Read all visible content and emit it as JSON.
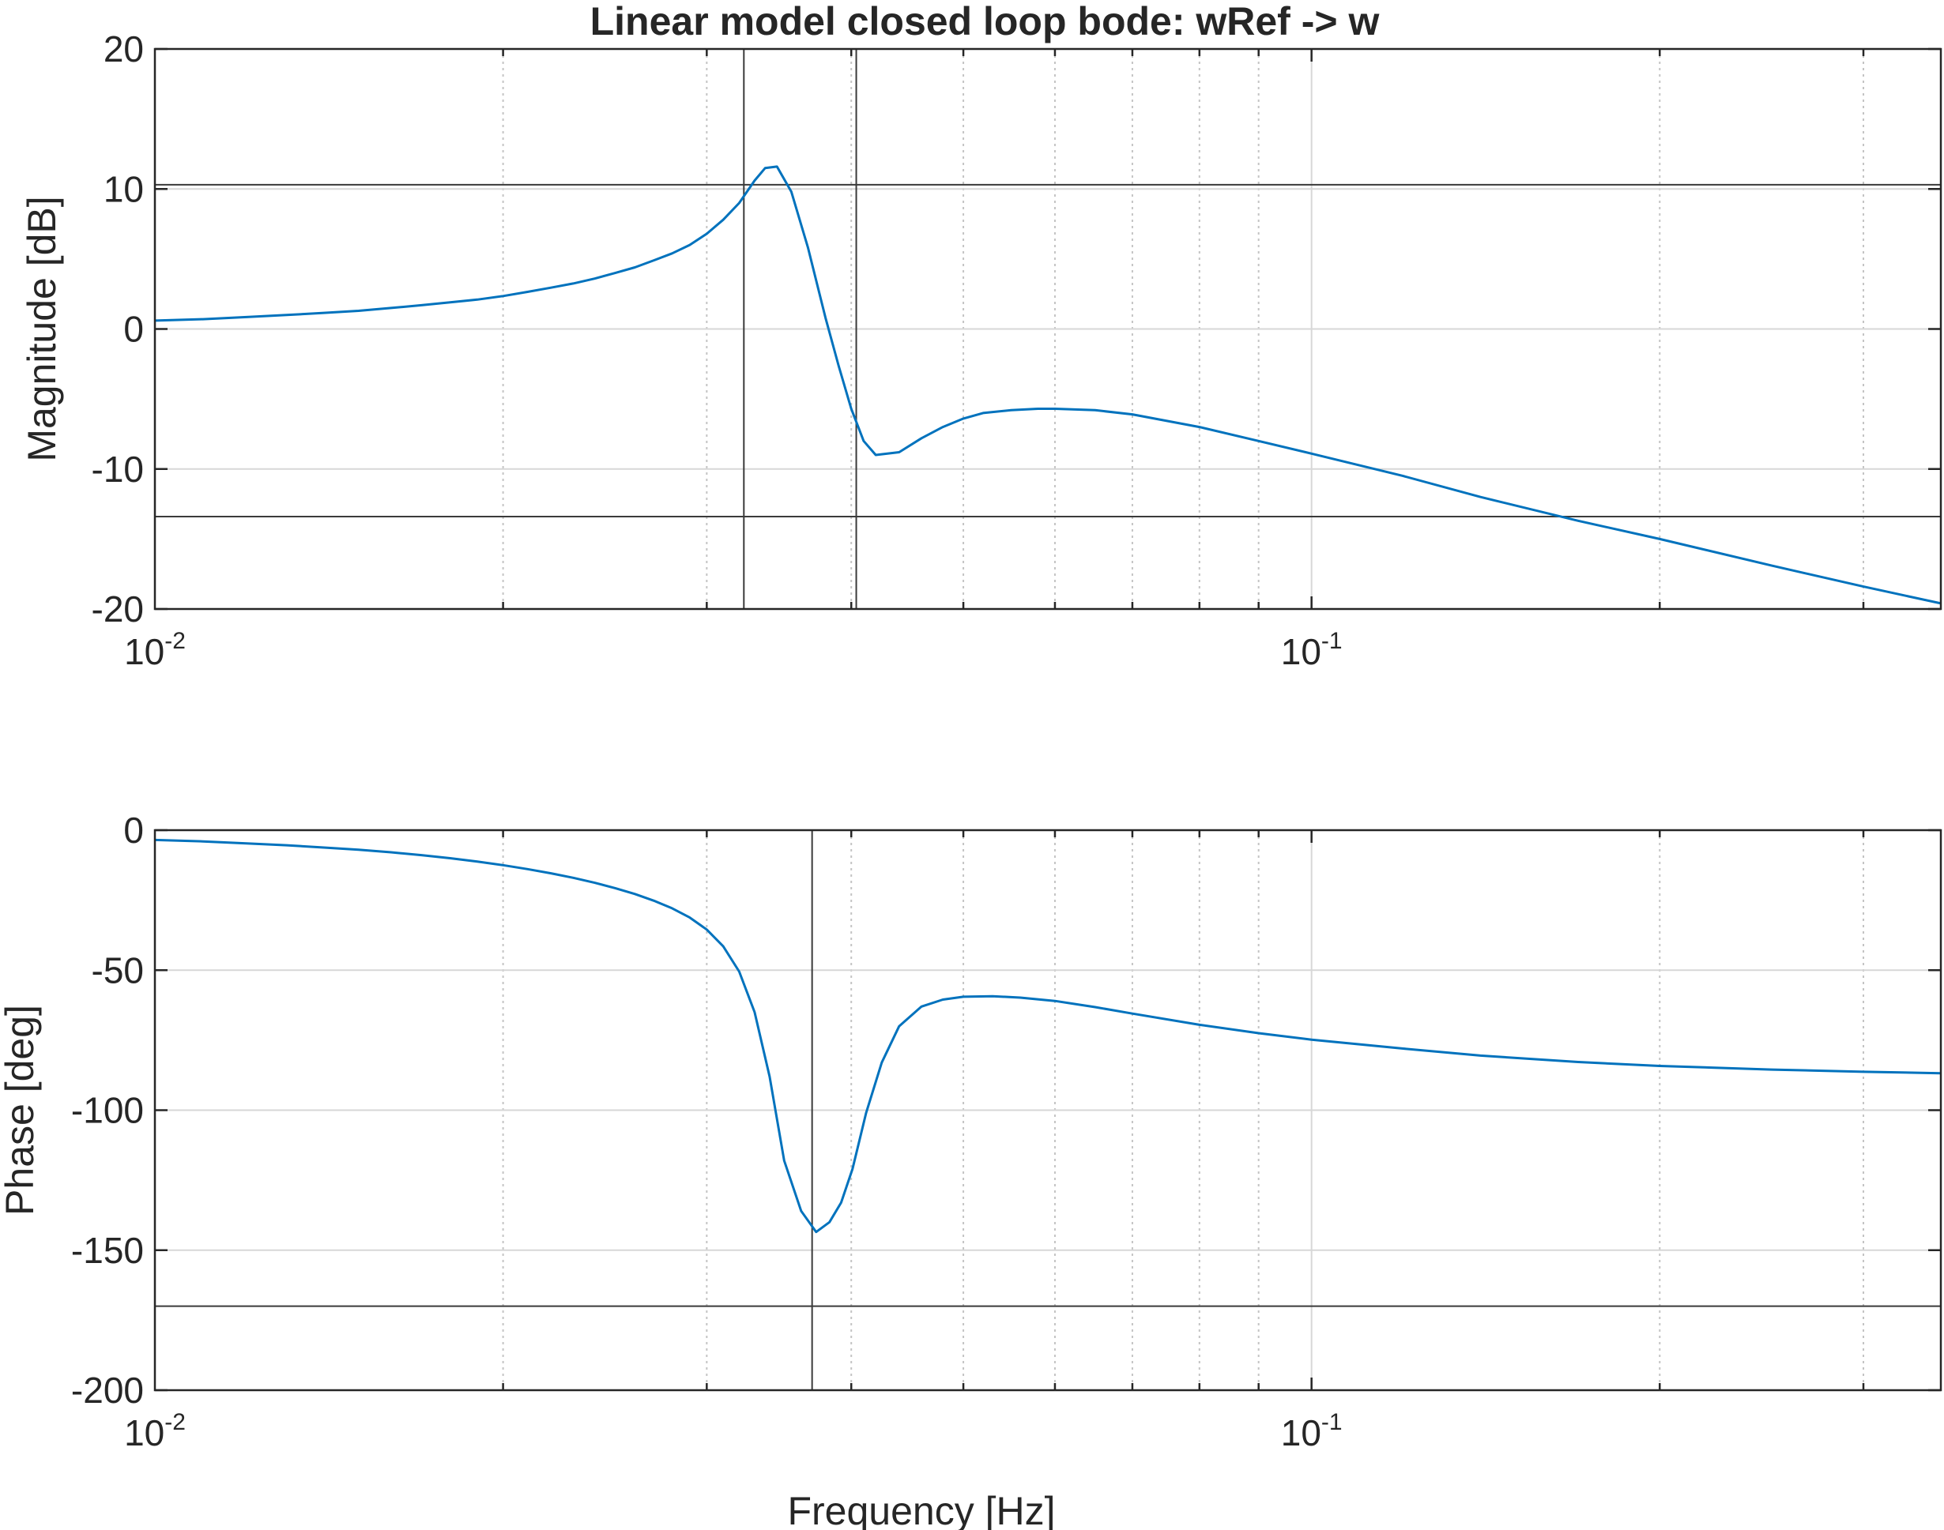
{
  "chart_data": [
    {
      "type": "line",
      "title": "Linear model closed loop bode: wRef -> w",
      "xlabel": "",
      "ylabel": "Magnitude [dB]",
      "xscale": "log",
      "xlim": [
        0.01,
        0.35
      ],
      "ylim": [
        -20,
        20
      ],
      "yticks": [
        -20,
        -10,
        0,
        10,
        20
      ],
      "xtick_labels": [
        {
          "base": "10",
          "exp": "-2",
          "value": 0.01
        },
        {
          "base": "10",
          "exp": "-1",
          "value": 0.1
        }
      ],
      "grid": true,
      "color": "#0072bd",
      "x": [
        0.01,
        0.011,
        0.012,
        0.013,
        0.014,
        0.015,
        0.016,
        0.017,
        0.018,
        0.019,
        0.02,
        0.021,
        0.022,
        0.023,
        0.024,
        0.025,
        0.026,
        0.027,
        0.028,
        0.029,
        0.03,
        0.031,
        0.032,
        0.033,
        0.0337,
        0.0345,
        0.0355,
        0.0367,
        0.038,
        0.039,
        0.04,
        0.041,
        0.042,
        0.044,
        0.046,
        0.048,
        0.05,
        0.052,
        0.055,
        0.058,
        0.06,
        0.065,
        0.07,
        0.08,
        0.09,
        0.1,
        0.12,
        0.14,
        0.17,
        0.2,
        0.25,
        0.3,
        0.35
      ],
      "values": [
        0.6,
        0.7,
        0.85,
        1.0,
        1.15,
        1.3,
        1.5,
        1.7,
        1.9,
        2.1,
        2.35,
        2.65,
        2.95,
        3.25,
        3.6,
        4.0,
        4.4,
        4.9,
        5.4,
        6.0,
        6.8,
        7.8,
        9.0,
        10.6,
        11.5,
        11.6,
        9.8,
        5.8,
        0.8,
        -2.6,
        -5.7,
        -8.0,
        -9.0,
        -8.8,
        -7.8,
        -7.0,
        -6.4,
        -6.0,
        -5.8,
        -5.7,
        -5.7,
        -5.8,
        -6.1,
        -7.0,
        -8.0,
        -8.9,
        -10.5,
        -12.0,
        -13.7,
        -15.0,
        -16.9,
        -18.4,
        -19.6
      ],
      "reference_lines": {
        "y": [
          10.3,
          -13.4
        ],
        "x": [
          0.0323,
          0.0404
        ]
      }
    },
    {
      "type": "line",
      "title": "",
      "xlabel": "Frequency [Hz]",
      "ylabel": "Phase [deg]",
      "xscale": "log",
      "xlim": [
        0.01,
        0.35
      ],
      "ylim": [
        -200,
        0
      ],
      "yticks": [
        -200,
        -150,
        -100,
        -50,
        0
      ],
      "xtick_labels": [
        {
          "base": "10",
          "exp": "-2",
          "value": 0.01
        },
        {
          "base": "10",
          "exp": "-1",
          "value": 0.1
        }
      ],
      "grid": true,
      "color": "#0072bd",
      "x": [
        0.01,
        0.011,
        0.012,
        0.013,
        0.014,
        0.015,
        0.016,
        0.017,
        0.018,
        0.019,
        0.02,
        0.021,
        0.022,
        0.023,
        0.024,
        0.025,
        0.026,
        0.027,
        0.028,
        0.029,
        0.03,
        0.031,
        0.032,
        0.033,
        0.034,
        0.035,
        0.0362,
        0.0373,
        0.0383,
        0.0392,
        0.0401,
        0.0412,
        0.0425,
        0.044,
        0.046,
        0.048,
        0.05,
        0.053,
        0.056,
        0.06,
        0.065,
        0.07,
        0.08,
        0.09,
        0.1,
        0.12,
        0.14,
        0.17,
        0.2,
        0.25,
        0.3,
        0.35
      ],
      "values": [
        -3.5,
        -4.0,
        -4.7,
        -5.4,
        -6.2,
        -7.0,
        -7.9,
        -8.9,
        -10.0,
        -11.2,
        -12.5,
        -13.9,
        -15.4,
        -17.0,
        -18.8,
        -20.7,
        -22.8,
        -25.2,
        -27.9,
        -31.2,
        -35.5,
        -41.5,
        -50.5,
        -65.0,
        -88.0,
        -118.0,
        -136.0,
        -143.5,
        -140.0,
        -133.0,
        -121.0,
        -101.0,
        -83.0,
        -70.0,
        -63.0,
        -60.5,
        -59.5,
        -59.3,
        -59.8,
        -61.0,
        -63.2,
        -65.5,
        -69.5,
        -72.5,
        -74.8,
        -78.0,
        -80.5,
        -82.8,
        -84.2,
        -85.5,
        -86.3,
        -86.8
      ],
      "reference_lines": {
        "y": [
          -170
        ],
        "x": [
          0.037
        ]
      }
    }
  ]
}
